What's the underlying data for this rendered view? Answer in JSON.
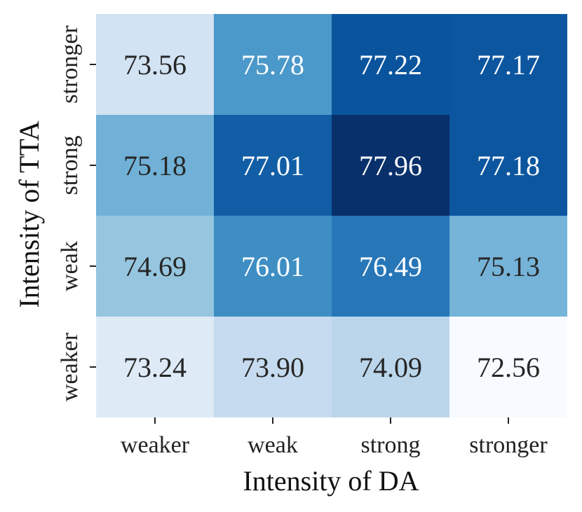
{
  "chart_data": {
    "type": "heatmap",
    "xlabel": "Intensity of DA",
    "ylabel": "Intensity of TTA",
    "x_categories": [
      "weaker",
      "weak",
      "strong",
      "stronger"
    ],
    "y_categories": [
      "stronger",
      "strong",
      "weak",
      "weaker"
    ],
    "values": [
      [
        73.56,
        75.78,
        77.22,
        77.17
      ],
      [
        75.18,
        77.01,
        77.96,
        77.18
      ],
      [
        74.69,
        76.01,
        76.49,
        75.13
      ],
      [
        73.24,
        73.9,
        74.09,
        72.56
      ]
    ],
    "value_labels": [
      [
        "73.56",
        "75.78",
        "77.22",
        "77.17"
      ],
      [
        "75.18",
        "77.01",
        "77.96",
        "77.18"
      ],
      [
        "74.69",
        "76.01",
        "76.49",
        "75.13"
      ],
      [
        "73.24",
        "73.90",
        "74.09",
        "72.56"
      ]
    ],
    "colormap": "Blues",
    "color_low": "#f7fbff",
    "color_high": "#08306b",
    "grid": false,
    "legend": "none"
  }
}
